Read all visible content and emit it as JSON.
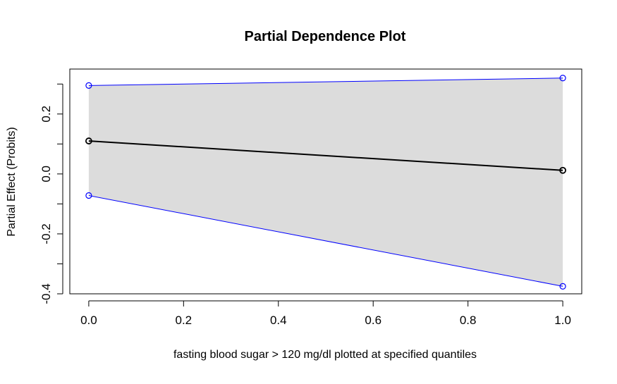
{
  "chart_data": {
    "type": "line",
    "title": "Partial Dependence Plot",
    "xlabel": "fasting blood sugar > 120 mg/dl plotted at specified quantiles",
    "ylabel": "Partial Effect (Probits)",
    "x": [
      0.0,
      1.0
    ],
    "series": [
      {
        "role": "estimate",
        "color": "#000000",
        "values": [
          0.11,
          0.012
        ]
      },
      {
        "role": "upper",
        "color": "#0000ff",
        "values": [
          0.295,
          0.32
        ]
      },
      {
        "role": "lower",
        "color": "#0000ff",
        "values": [
          -0.072,
          -0.375
        ]
      }
    ],
    "band_color": "#dcdcdc",
    "xlim": [
      -0.04,
      1.04
    ],
    "ylim": [
      -0.4,
      0.35
    ],
    "x_ticks": [
      {
        "value": 0.0,
        "label": "0.0"
      },
      {
        "value": 0.2,
        "label": "0.2"
      },
      {
        "value": 0.4,
        "label": "0.4"
      },
      {
        "value": 0.6,
        "label": "0.6"
      },
      {
        "value": 0.8,
        "label": "0.8"
      },
      {
        "value": 1.0,
        "label": "1.0"
      }
    ],
    "y_ticks": [
      {
        "value": -0.4,
        "label": "-0.4"
      },
      {
        "value": -0.3,
        "label": ""
      },
      {
        "value": -0.2,
        "label": "-0.2"
      },
      {
        "value": -0.1,
        "label": ""
      },
      {
        "value": 0.0,
        "label": "0.0"
      },
      {
        "value": 0.1,
        "label": ""
      },
      {
        "value": 0.2,
        "label": "0.2"
      },
      {
        "value": 0.3,
        "label": ""
      }
    ],
    "grid": false
  }
}
